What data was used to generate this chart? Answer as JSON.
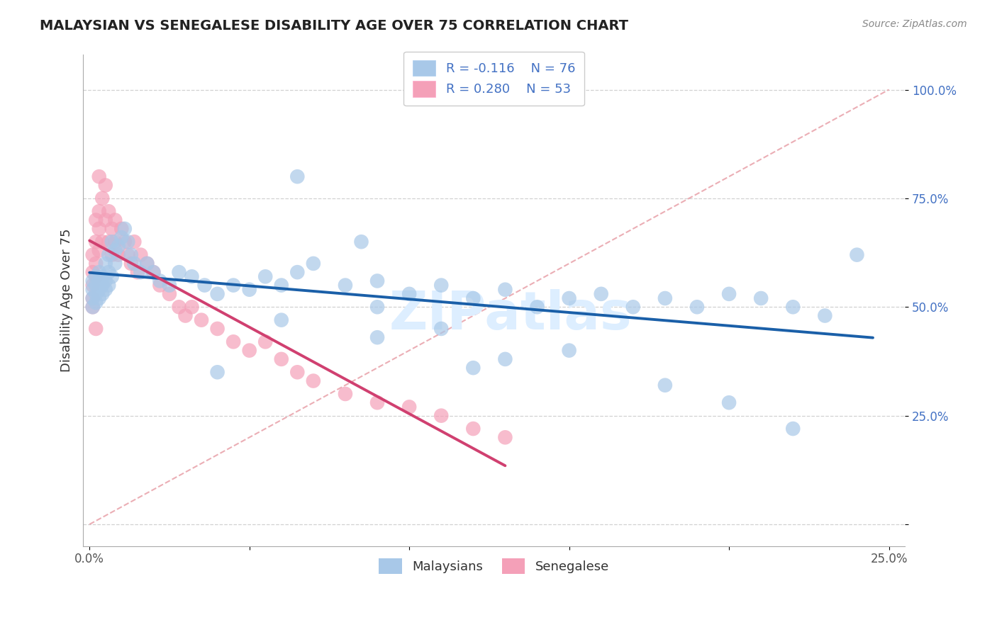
{
  "title": "MALAYSIAN VS SENEGALESE DISABILITY AGE OVER 75 CORRELATION CHART",
  "source_text": "Source: ZipAtlas.com",
  "ylabel": "Disability Age Over 75",
  "xlim": [
    -0.002,
    0.255
  ],
  "ylim": [
    -0.05,
    1.08
  ],
  "x_ticks": [
    0.0,
    0.05,
    0.1,
    0.15,
    0.2,
    0.25
  ],
  "x_tick_labels": [
    "0.0%",
    "",
    "",
    "",
    "",
    "25.0%"
  ],
  "y_ticks": [
    0.0,
    0.25,
    0.5,
    0.75,
    1.0
  ],
  "y_tick_labels": [
    "",
    "25.0%",
    "50.0%",
    "75.0%",
    "100.0%"
  ],
  "legend_labels": [
    "Malaysians",
    "Senegalese"
  ],
  "r_malaysian": -0.116,
  "n_malaysian": 76,
  "r_senegalese": 0.28,
  "n_senegalese": 53,
  "blue_scatter_color": "#a8c8e8",
  "pink_scatter_color": "#f4a0b8",
  "blue_line_color": "#1a5fa8",
  "pink_line_color": "#d04070",
  "diag_line_color": "#e8a0a8",
  "grid_color": "#cccccc",
  "background_color": "#ffffff",
  "watermark_text": "ZIPatlas",
  "watermark_color": "#ddeeff",
  "ytick_color": "#4472c4",
  "xtick_color": "#555555",
  "title_color": "#222222",
  "source_color": "#888888",
  "ylabel_color": "#333333",
  "malaysian_x": [
    0.001,
    0.001,
    0.001,
    0.001,
    0.002,
    0.002,
    0.002,
    0.002,
    0.003,
    0.003,
    0.003,
    0.003,
    0.004,
    0.004,
    0.004,
    0.005,
    0.005,
    0.005,
    0.006,
    0.006,
    0.006,
    0.007,
    0.007,
    0.008,
    0.008,
    0.009,
    0.01,
    0.011,
    0.012,
    0.013,
    0.014,
    0.016,
    0.018,
    0.02,
    0.022,
    0.025,
    0.028,
    0.032,
    0.036,
    0.04,
    0.045,
    0.05,
    0.055,
    0.06,
    0.065,
    0.07,
    0.08,
    0.09,
    0.1,
    0.11,
    0.12,
    0.13,
    0.14,
    0.15,
    0.16,
    0.17,
    0.18,
    0.19,
    0.2,
    0.21,
    0.22,
    0.23,
    0.065,
    0.085,
    0.11,
    0.13,
    0.15,
    0.09,
    0.12,
    0.18,
    0.06,
    0.04,
    0.2,
    0.22,
    0.09,
    0.24
  ],
  "malaysian_y": [
    0.54,
    0.52,
    0.56,
    0.5,
    0.55,
    0.53,
    0.57,
    0.51,
    0.54,
    0.56,
    0.52,
    0.58,
    0.55,
    0.57,
    0.53,
    0.56,
    0.54,
    0.6,
    0.55,
    0.58,
    0.62,
    0.57,
    0.65,
    0.6,
    0.63,
    0.64,
    0.66,
    0.68,
    0.65,
    0.62,
    0.6,
    0.58,
    0.6,
    0.58,
    0.56,
    0.55,
    0.58,
    0.57,
    0.55,
    0.53,
    0.55,
    0.54,
    0.57,
    0.55,
    0.58,
    0.6,
    0.55,
    0.56,
    0.53,
    0.55,
    0.52,
    0.54,
    0.5,
    0.52,
    0.53,
    0.5,
    0.52,
    0.5,
    0.53,
    0.52,
    0.5,
    0.48,
    0.8,
    0.65,
    0.45,
    0.38,
    0.4,
    0.43,
    0.36,
    0.32,
    0.47,
    0.35,
    0.28,
    0.22,
    0.5,
    0.62
  ],
  "senegalese_x": [
    0.001,
    0.001,
    0.001,
    0.001,
    0.001,
    0.002,
    0.002,
    0.002,
    0.002,
    0.003,
    0.003,
    0.003,
    0.004,
    0.004,
    0.005,
    0.005,
    0.006,
    0.006,
    0.007,
    0.007,
    0.008,
    0.008,
    0.009,
    0.01,
    0.011,
    0.012,
    0.013,
    0.014,
    0.015,
    0.016,
    0.018,
    0.02,
    0.022,
    0.025,
    0.028,
    0.03,
    0.032,
    0.035,
    0.04,
    0.045,
    0.05,
    0.055,
    0.06,
    0.065,
    0.07,
    0.08,
    0.09,
    0.1,
    0.11,
    0.12,
    0.13,
    0.002,
    0.003
  ],
  "senegalese_y": [
    0.55,
    0.58,
    0.62,
    0.52,
    0.5,
    0.57,
    0.65,
    0.6,
    0.7,
    0.63,
    0.68,
    0.72,
    0.65,
    0.75,
    0.7,
    0.78,
    0.65,
    0.72,
    0.68,
    0.62,
    0.7,
    0.65,
    0.62,
    0.68,
    0.65,
    0.62,
    0.6,
    0.65,
    0.58,
    0.62,
    0.6,
    0.58,
    0.55,
    0.53,
    0.5,
    0.48,
    0.5,
    0.47,
    0.45,
    0.42,
    0.4,
    0.42,
    0.38,
    0.35,
    0.33,
    0.3,
    0.28,
    0.27,
    0.25,
    0.22,
    0.2,
    0.45,
    0.8
  ]
}
